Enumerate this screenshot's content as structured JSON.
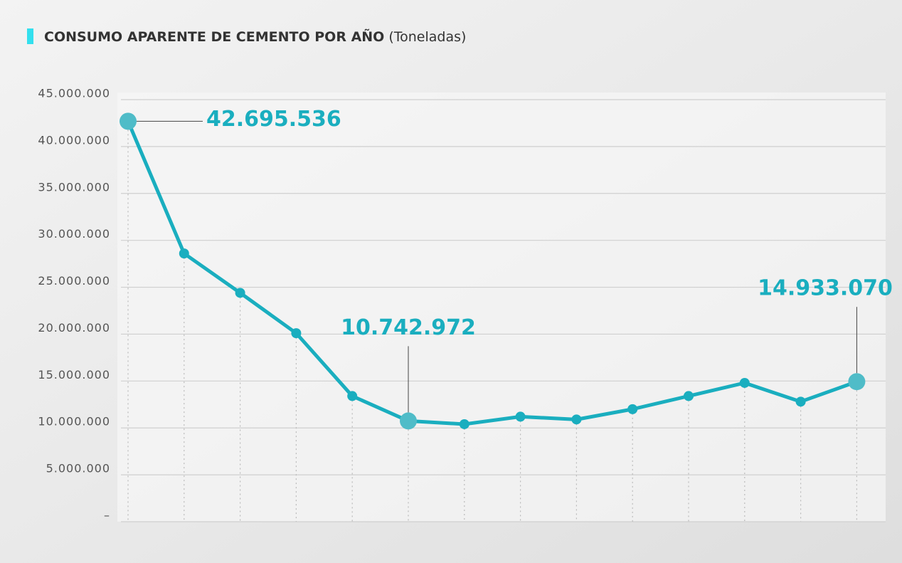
{
  "chart_data": {
    "type": "line",
    "title": "CONSUMO APARENTE DE CEMENTO POR AÑO",
    "subtitle": "(Toneladas)",
    "categories": [
      null,
      null,
      null,
      null,
      null,
      null,
      null,
      null,
      null,
      null,
      null,
      null,
      null,
      null
    ],
    "series": [
      {
        "color": "#1aaebf",
        "values": [
          42695536,
          28600000,
          24400000,
          20100000,
          13400000,
          10742972,
          10400000,
          11200000,
          10900000,
          12000000,
          13400000,
          14800000,
          12800000,
          14933070
        ],
        "value_labels": [
          "42.695.536",
          null,
          null,
          null,
          null,
          "10.742.972",
          null,
          null,
          null,
          null,
          null,
          null,
          null,
          "14.933.070"
        ]
      }
    ],
    "ylim": [
      0,
      45000000
    ],
    "yticks": [
      {
        "value": 0,
        "label": "–"
      },
      {
        "value": 5000000,
        "label": "5.000.000"
      },
      {
        "value": 10000000,
        "label": "10.000.000"
      },
      {
        "value": 15000000,
        "label": "15.000.000"
      },
      {
        "value": 20000000,
        "label": "20.000.000"
      },
      {
        "value": 25000000,
        "label": "25.000.000"
      },
      {
        "value": 30000000,
        "label": "30.000.000"
      },
      {
        "value": 35000000,
        "label": "35.000.000"
      },
      {
        "value": 40000000,
        "label": "40.000.000"
      },
      {
        "value": 45000000,
        "label": "45.000.000"
      }
    ],
    "grid": true
  }
}
